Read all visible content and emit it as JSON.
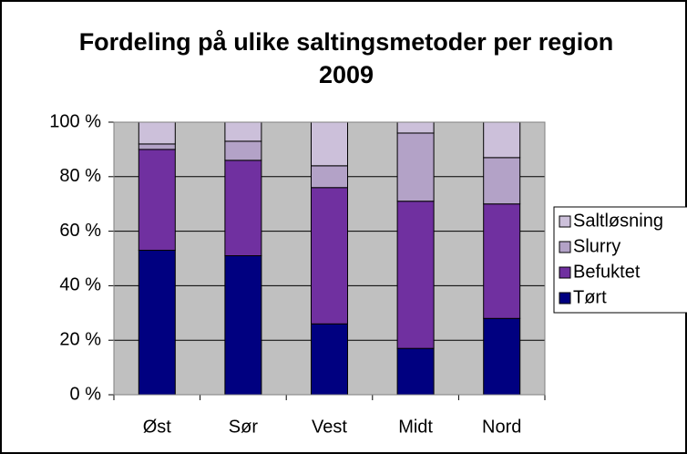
{
  "chart_data": {
    "type": "stacked_bar",
    "title": "Fordeling på ulike saltingsmetoder per region 2009",
    "categories": [
      "Øst",
      "Sør",
      "Vest",
      "Midt",
      "Nord"
    ],
    "series": [
      {
        "name": "Tørt",
        "color": "#000080",
        "values": [
          53,
          51,
          26,
          17,
          28
        ]
      },
      {
        "name": "Befuktet",
        "color": "#7030a0",
        "values": [
          37,
          35,
          50,
          54,
          42
        ]
      },
      {
        "name": "Slurry",
        "color": "#b3a2c7",
        "values": [
          2,
          7,
          8,
          25,
          17
        ]
      },
      {
        "name": "Saltløsning",
        "color": "#ccc0da",
        "values": [
          8,
          7,
          16,
          4,
          13
        ]
      }
    ],
    "ylim": [
      0,
      100
    ],
    "yticks": [
      {
        "value": 0,
        "label": "0 %"
      },
      {
        "value": 20,
        "label": "20 %"
      },
      {
        "value": 40,
        "label": "40 %"
      },
      {
        "value": 60,
        "label": "60 %"
      },
      {
        "value": 80,
        "label": "80 %"
      },
      {
        "value": 100,
        "label": "100 %"
      }
    ],
    "grid": true,
    "legend": "right"
  }
}
